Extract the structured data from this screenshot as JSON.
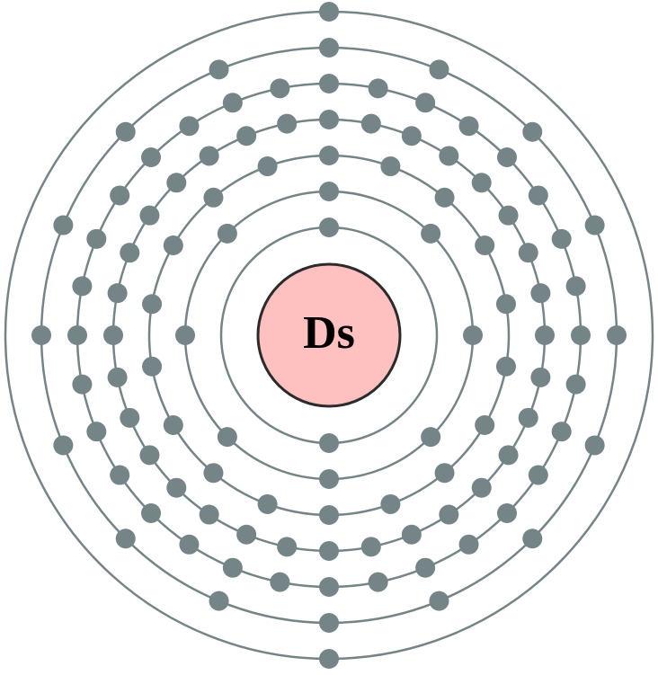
{
  "element": {
    "symbol": "Ds"
  },
  "shells": [
    {
      "index": 1,
      "electrons": 2
    },
    {
      "index": 2,
      "electrons": 8
    },
    {
      "index": 3,
      "electrons": 18
    },
    {
      "index": 4,
      "electrons": 32
    },
    {
      "index": 5,
      "electrons": 32
    },
    {
      "index": 6,
      "electrons": 16
    },
    {
      "index": 7,
      "electrons": 2
    }
  ],
  "colors": {
    "nucleus_fill": "#ffc0c0",
    "nucleus_stroke": "#2b2b2b",
    "shell_stroke": "#748487",
    "electron_fill": "#748487",
    "background": "#ffffff"
  }
}
